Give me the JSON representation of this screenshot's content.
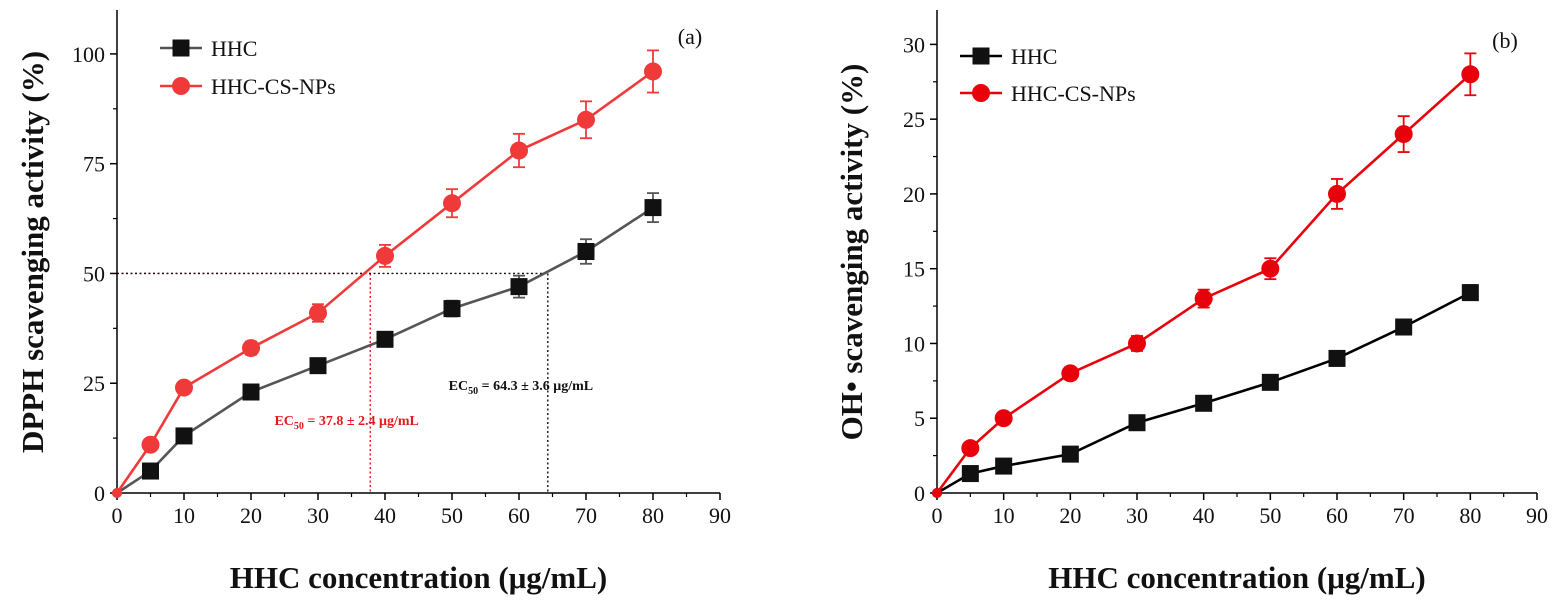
{
  "chart_data": [
    {
      "type": "line",
      "panel_label": "(a)",
      "xlabel": "HHC concentration (μg/mL)",
      "ylabel": "DPPH scavenging activity (%)",
      "xlim": [
        0,
        90
      ],
      "ylim": [
        0,
        110
      ],
      "xticks": [
        0,
        10,
        20,
        30,
        40,
        50,
        60,
        70,
        80,
        90
      ],
      "yticks": [
        0,
        25,
        50,
        75,
        100
      ],
      "series": [
        {
          "name": "HHC",
          "color": "#555555",
          "marker": "square",
          "x": [
            0,
            5,
            10,
            20,
            30,
            40,
            50,
            60,
            70,
            80
          ],
          "values": [
            0,
            5,
            13,
            23,
            29,
            35,
            42,
            47,
            55,
            65
          ],
          "errors": [
            0,
            0.8,
            1.0,
            1.2,
            1.5,
            1.5,
            1.8,
            2.5,
            2.8,
            3.3
          ]
        },
        {
          "name": "HHC-CS-NPs",
          "color": "#f03a3a",
          "marker": "circle",
          "x": [
            0,
            5,
            10,
            20,
            30,
            40,
            50,
            60,
            70,
            80
          ],
          "values": [
            0,
            11,
            24,
            33,
            41,
            54,
            66,
            78,
            85,
            96
          ],
          "errors": [
            0,
            1.0,
            1.2,
            1.5,
            2.0,
            2.5,
            3.2,
            3.8,
            4.2,
            4.8
          ]
        }
      ],
      "annotations": [
        {
          "type": "ec50",
          "x": 37.8,
          "y": 50,
          "color": "#e31a1c",
          "label_prefix": "EC",
          "label_sub": "50",
          "label_rest": " = 37.8 ± 2.4 μg/mL",
          "label_x": 23.5,
          "label_y": 15.5
        },
        {
          "type": "ec50",
          "x": 64.3,
          "y": 50,
          "color": "#111111",
          "label_prefix": "EC",
          "label_sub": "50",
          "label_rest": " = 64.3 ± 3.6 μg/mL",
          "label_x": 49.5,
          "label_y": 23.5
        }
      ]
    },
    {
      "type": "line",
      "panel_label": "(b)",
      "xlabel": "HHC concentration (μg/mL)",
      "ylabel": "OH• scavenging activity (%)",
      "xlim": [
        0,
        90
      ],
      "ylim": [
        0,
        32.3
      ],
      "xticks": [
        0,
        10,
        20,
        30,
        40,
        50,
        60,
        70,
        80,
        90
      ],
      "yticks": [
        0,
        5,
        10,
        15,
        20,
        25,
        30
      ],
      "series": [
        {
          "name": "HHC",
          "color": "#000000",
          "marker": "square",
          "x": [
            0,
            5,
            10,
            20,
            30,
            40,
            50,
            60,
            70,
            80
          ],
          "values": [
            0,
            1.3,
            1.8,
            2.6,
            4.7,
            6.0,
            7.4,
            9.0,
            11.1,
            13.4
          ],
          "errors": [
            0,
            0.2,
            0.2,
            0.3,
            0.3,
            0.3,
            0.3,
            0.3,
            0.4,
            0.5
          ]
        },
        {
          "name": "HHC-CS-NPs",
          "color": "#e8000b",
          "marker": "circle",
          "x": [
            0,
            5,
            10,
            20,
            30,
            40,
            50,
            60,
            70,
            80
          ],
          "values": [
            0,
            3.0,
            5.0,
            8.0,
            10.0,
            13.0,
            15.0,
            20.0,
            24.0,
            28.0
          ],
          "errors": [
            0,
            0.3,
            0.3,
            0.4,
            0.5,
            0.6,
            0.7,
            1.0,
            1.2,
            1.4
          ]
        }
      ],
      "annotations": []
    }
  ]
}
